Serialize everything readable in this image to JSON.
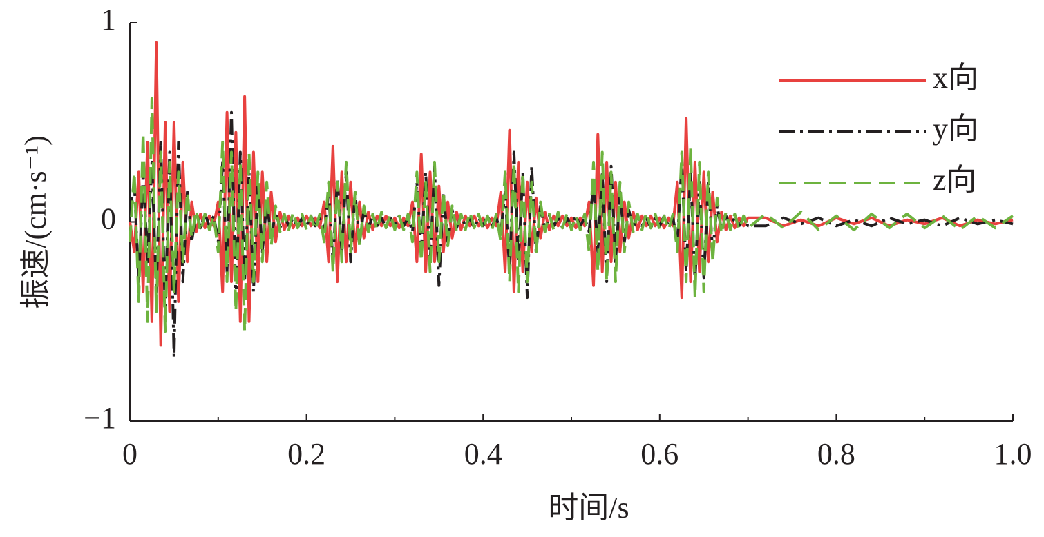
{
  "chart_data": {
    "type": "line",
    "xlabel": "时间/s",
    "ylabel": "振速/(cm·s⁻¹)",
    "xlim": [
      0,
      1
    ],
    "xticks": [
      0,
      0.2,
      0.4,
      0.6,
      0.8,
      {
        "value": 1,
        "label": "1.0"
      }
    ],
    "xminorticks": [
      0.1,
      0.3,
      0.5,
      0.7,
      0.9
    ],
    "ylim": [
      -1,
      1
    ],
    "yticks": [
      {
        "value": -1,
        "label": "−1"
      },
      0,
      1
    ],
    "legend": "top-right",
    "x": [
      0,
      0.005,
      0.01,
      0.015,
      0.02,
      0.025,
      0.03,
      0.035,
      0.04,
      0.045,
      0.05,
      0.055,
      0.06,
      0.065,
      0.07,
      0.075,
      0.08,
      0.085,
      0.09,
      0.095,
      0.1,
      0.105,
      0.11,
      0.115,
      0.12,
      0.125,
      0.13,
      0.135,
      0.14,
      0.145,
      0.15,
      0.155,
      0.16,
      0.165,
      0.17,
      0.175,
      0.18,
      0.185,
      0.19,
      0.195,
      0.2,
      0.205,
      0.21,
      0.215,
      0.22,
      0.225,
      0.23,
      0.235,
      0.24,
      0.245,
      0.25,
      0.255,
      0.26,
      0.265,
      0.27,
      0.275,
      0.28,
      0.285,
      0.29,
      0.295,
      0.3,
      0.305,
      0.31,
      0.315,
      0.32,
      0.325,
      0.33,
      0.335,
      0.34,
      0.345,
      0.35,
      0.355,
      0.36,
      0.365,
      0.37,
      0.375,
      0.38,
      0.385,
      0.39,
      0.395,
      0.4,
      0.405,
      0.41,
      0.415,
      0.42,
      0.425,
      0.43,
      0.435,
      0.44,
      0.445,
      0.45,
      0.455,
      0.46,
      0.465,
      0.47,
      0.475,
      0.48,
      0.485,
      0.49,
      0.495,
      0.5,
      0.505,
      0.51,
      0.515,
      0.52,
      0.525,
      0.53,
      0.535,
      0.54,
      0.545,
      0.55,
      0.555,
      0.56,
      0.565,
      0.57,
      0.575,
      0.58,
      0.585,
      0.59,
      0.595,
      0.6,
      0.605,
      0.61,
      0.615,
      0.62,
      0.625,
      0.63,
      0.635,
      0.64,
      0.645,
      0.65,
      0.655,
      0.66,
      0.665,
      0.67,
      0.675,
      0.68,
      0.685,
      0.69,
      0.695,
      0.7,
      0.72,
      0.74,
      0.76,
      0.78,
      0.8,
      0.82,
      0.84,
      0.86,
      0.88,
      0.9,
      0.92,
      0.94,
      0.96,
      0.98,
      1
    ],
    "series": [
      {
        "name": "x向",
        "color": "#e8413f",
        "dash": "none",
        "values": [
          0,
          -0.15,
          0.25,
          -0.35,
          0.4,
          -0.5,
          0.9,
          -0.62,
          0.5,
          -0.45,
          0.5,
          -0.4,
          0.3,
          -0.2,
          0.1,
          -0.05,
          0.04,
          -0.03,
          0.03,
          -0.02,
          0.1,
          -0.35,
          0.55,
          -0.3,
          0.45,
          -0.5,
          0.63,
          -0.5,
          0.35,
          -0.3,
          0.25,
          -0.2,
          0.15,
          -0.1,
          0.05,
          -0.04,
          0.03,
          -0.03,
          0.02,
          -0.02,
          0.03,
          -0.02,
          0.02,
          -0.03,
          0.1,
          -0.2,
          0.38,
          -0.3,
          0.25,
          -0.2,
          0.2,
          -0.15,
          0.1,
          -0.08,
          0.05,
          -0.04,
          0.03,
          -0.02,
          0.03,
          -0.02,
          0.02,
          -0.03,
          0.02,
          -0.02,
          0.1,
          -0.2,
          0.34,
          -0.25,
          0.25,
          -0.2,
          0.18,
          -0.15,
          0.1,
          -0.08,
          0.05,
          -0.04,
          0.03,
          -0.02,
          0.03,
          -0.02,
          0.02,
          -0.03,
          0.02,
          -0.02,
          0.15,
          -0.25,
          0.46,
          -0.35,
          0.3,
          -0.25,
          0.2,
          -0.15,
          0.12,
          -0.08,
          0.05,
          -0.04,
          0.03,
          -0.02,
          0.03,
          -0.02,
          0.02,
          -0.03,
          0.02,
          -0.02,
          0.1,
          -0.32,
          0.44,
          -0.25,
          0.3,
          -0.2,
          0.2,
          -0.15,
          0.1,
          -0.08,
          0.05,
          -0.04,
          0.03,
          -0.02,
          0.03,
          -0.02,
          0.02,
          -0.03,
          0.02,
          -0.02,
          0.2,
          -0.38,
          0.52,
          -0.3,
          0.3,
          -0.25,
          0.25,
          -0.2,
          0.15,
          -0.1,
          0.05,
          -0.04,
          0.03,
          -0.03,
          0.02,
          -0.02,
          0.02,
          0.02,
          -0.02,
          0.01,
          -0.02,
          0.02,
          -0.01,
          0.02,
          -0.02,
          0.01,
          -0.01,
          0.02,
          -0.02,
          0.01,
          -0.01,
          0.01
        ]
      },
      {
        "name": "y向",
        "color": "#231f20",
        "dash": "22,8,4,8",
        "values": [
          0.05,
          0.2,
          -0.3,
          0.25,
          -0.2,
          0.3,
          -0.35,
          0.4,
          -0.45,
          0.35,
          -0.68,
          0.4,
          -0.3,
          0.15,
          -0.1,
          0.05,
          -0.03,
          0.04,
          -0.02,
          0.03,
          -0.1,
          0.3,
          -0.25,
          0.55,
          -0.4,
          0.35,
          -0.3,
          0.25,
          -0.35,
          0.2,
          -0.15,
          0.1,
          -0.08,
          0.05,
          -0.03,
          0.03,
          -0.02,
          0.02,
          -0.03,
          0.02,
          -0.02,
          0.03,
          -0.02,
          0.02,
          -0.05,
          0.15,
          -0.2,
          0.22,
          -0.15,
          0.25,
          -0.2,
          0.15,
          -0.1,
          0.06,
          -0.03,
          0.03,
          -0.02,
          0.02,
          -0.03,
          0.02,
          -0.02,
          0.03,
          -0.02,
          0.02,
          -0.05,
          0.2,
          -0.15,
          0.25,
          -0.2,
          0.28,
          -0.32,
          0.15,
          -0.1,
          0.06,
          -0.03,
          0.03,
          -0.02,
          0.02,
          -0.03,
          0.02,
          -0.02,
          0.03,
          -0.02,
          0.02,
          -0.05,
          0.15,
          -0.25,
          0.35,
          -0.2,
          0.25,
          -0.38,
          0.28,
          -0.15,
          0.08,
          -0.04,
          0.03,
          -0.02,
          0.02,
          -0.03,
          0.02,
          -0.02,
          0.03,
          -0.02,
          0.02,
          -0.05,
          0.2,
          -0.15,
          0.25,
          -0.3,
          0.28,
          -0.2,
          0.15,
          -0.1,
          0.06,
          -0.03,
          0.03,
          -0.02,
          0.02,
          -0.03,
          0.02,
          -0.02,
          0.03,
          -0.02,
          0.02,
          -0.1,
          0.3,
          -0.25,
          0.25,
          -0.3,
          0.2,
          -0.28,
          0.2,
          -0.15,
          0.08,
          -0.04,
          0.03,
          -0.02,
          0.02,
          -0.02,
          0.02,
          -0.02,
          -0.02,
          0.02,
          -0.01,
          0.02,
          -0.02,
          0.01,
          -0.02,
          0.02,
          -0.01,
          0.01,
          -0.02,
          0.02,
          -0.01,
          0.01,
          -0.01
        ]
      },
      {
        "name": "z向",
        "color": "#6db33f",
        "dash": "24,12",
        "values": [
          -0.1,
          0.25,
          -0.4,
          0.45,
          -0.5,
          0.62,
          -0.45,
          0.35,
          -0.55,
          0.3,
          -0.35,
          0.25,
          -0.2,
          0.15,
          -0.08,
          0.06,
          -0.05,
          0.04,
          -0.04,
          0.03,
          -0.15,
          0.4,
          -0.3,
          0.35,
          -0.45,
          0.3,
          -0.55,
          0.35,
          -0.3,
          0.25,
          -0.2,
          0.2,
          -0.12,
          0.08,
          -0.05,
          0.04,
          -0.04,
          0.05,
          -0.03,
          0.04,
          -0.04,
          0.03,
          -0.04,
          0.04,
          -0.1,
          0.2,
          -0.25,
          0.2,
          -0.2,
          0.3,
          -0.15,
          0.15,
          -0.12,
          0.08,
          -0.05,
          0.04,
          -0.04,
          0.05,
          -0.03,
          0.04,
          -0.04,
          0.03,
          -0.04,
          0.04,
          -0.1,
          0.25,
          -0.2,
          0.2,
          -0.25,
          0.3,
          -0.2,
          0.15,
          -0.12,
          0.08,
          -0.05,
          0.04,
          -0.04,
          0.05,
          -0.03,
          0.04,
          -0.04,
          0.03,
          -0.04,
          0.04,
          -0.1,
          0.25,
          -0.3,
          0.3,
          -0.35,
          0.25,
          -0.3,
          0.2,
          -0.15,
          0.1,
          -0.05,
          0.04,
          -0.04,
          0.05,
          -0.03,
          0.04,
          -0.04,
          0.03,
          -0.04,
          0.04,
          -0.15,
          0.3,
          -0.25,
          0.35,
          -0.3,
          0.25,
          -0.3,
          0.2,
          -0.15,
          0.1,
          -0.05,
          0.04,
          -0.04,
          0.05,
          -0.03,
          0.04,
          -0.04,
          0.03,
          -0.04,
          0.04,
          -0.15,
          0.35,
          -0.3,
          0.37,
          -0.38,
          0.3,
          -0.35,
          0.25,
          -0.2,
          0.12,
          -0.06,
          0.05,
          -0.04,
          0.04,
          -0.04,
          0.03,
          -0.03,
          0.04,
          -0.03,
          0.05,
          -0.04,
          0.03,
          -0.04,
          0.04,
          -0.03,
          0.04,
          -0.03,
          0.03,
          -0.04,
          0.03,
          -0.03,
          0.03
        ]
      }
    ]
  }
}
